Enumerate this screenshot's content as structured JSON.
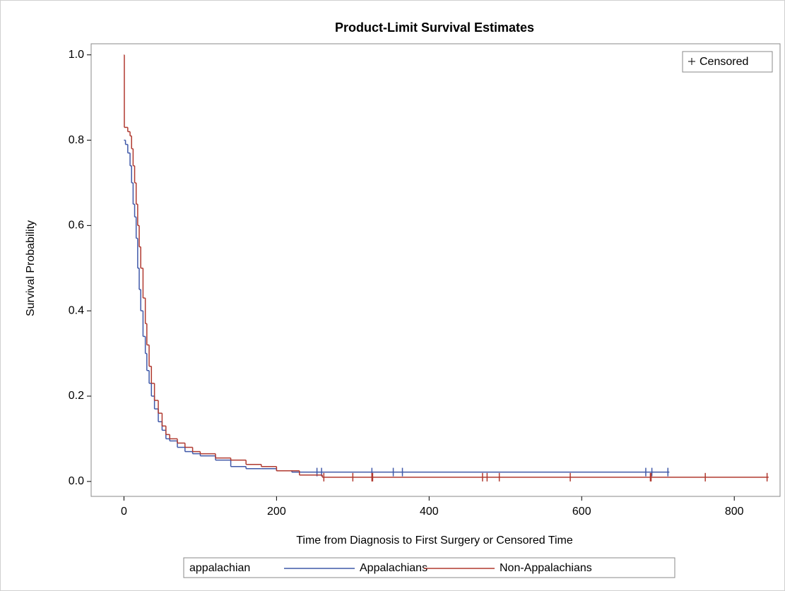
{
  "chart_data": {
    "type": "line",
    "step": true,
    "title": "Product-Limit Survival Estimates",
    "x_label": "Time from Diagnosis to First Surgery or Censored Time",
    "y_label": "Survival Probability",
    "xlim": [
      -43,
      860
    ],
    "ylim": [
      -0.035,
      1.026
    ],
    "xticks": [
      0,
      200,
      400,
      600,
      800
    ],
    "yticks": [
      {
        "value": 0,
        "label": "0.0"
      },
      0.2,
      0.4,
      0.6,
      0.8,
      {
        "value": 1,
        "label": "1.0"
      }
    ],
    "legend_title": "appalachian",
    "censor_legend": "Censored",
    "series": [
      {
        "name": "Appalachians",
        "color": "#3f58a8",
        "x": [
          0,
          2,
          5,
          8,
          10,
          12,
          14,
          16,
          18,
          20,
          22,
          25,
          28,
          30,
          33,
          36,
          40,
          45,
          50,
          55,
          60,
          70,
          80,
          90,
          100,
          120,
          140,
          160,
          180,
          200,
          220,
          715
        ],
        "values": [
          0.8,
          0.79,
          0.77,
          0.74,
          0.7,
          0.65,
          0.62,
          0.57,
          0.5,
          0.45,
          0.4,
          0.34,
          0.3,
          0.26,
          0.23,
          0.2,
          0.17,
          0.14,
          0.12,
          0.1,
          0.095,
          0.08,
          0.07,
          0.065,
          0.06,
          0.05,
          0.035,
          0.03,
          0.03,
          0.025,
          0.022,
          0.022
        ],
        "censored_x": [
          253,
          259,
          325,
          353,
          365,
          684,
          692,
          713
        ],
        "censored_y": [
          0.022,
          0.022,
          0.022,
          0.022,
          0.022,
          0.022,
          0.022,
          0.022
        ]
      },
      {
        "name": "Non-Appalachians",
        "color": "#b0392f",
        "x": [
          0,
          0.5,
          5,
          8,
          10,
          12,
          14,
          16,
          18,
          20,
          22,
          25,
          28,
          30,
          33,
          36,
          40,
          45,
          50,
          55,
          60,
          70,
          80,
          90,
          100,
          120,
          140,
          160,
          180,
          200,
          230,
          260,
          845
        ],
        "values": [
          1.0,
          0.83,
          0.82,
          0.81,
          0.78,
          0.74,
          0.7,
          0.65,
          0.6,
          0.55,
          0.5,
          0.43,
          0.37,
          0.32,
          0.27,
          0.23,
          0.19,
          0.16,
          0.13,
          0.11,
          0.1,
          0.09,
          0.08,
          0.07,
          0.065,
          0.055,
          0.05,
          0.04,
          0.035,
          0.025,
          0.015,
          0.01,
          0.01
        ],
        "censored_x": [
          262,
          300,
          325,
          326,
          470,
          476,
          492,
          585,
          690,
          691,
          762,
          843
        ],
        "censored_y": [
          0.01,
          0.01,
          0.01,
          0.01,
          0.01,
          0.01,
          0.01,
          0.01,
          0.01,
          0.01,
          0.01,
          0.01
        ]
      }
    ]
  }
}
